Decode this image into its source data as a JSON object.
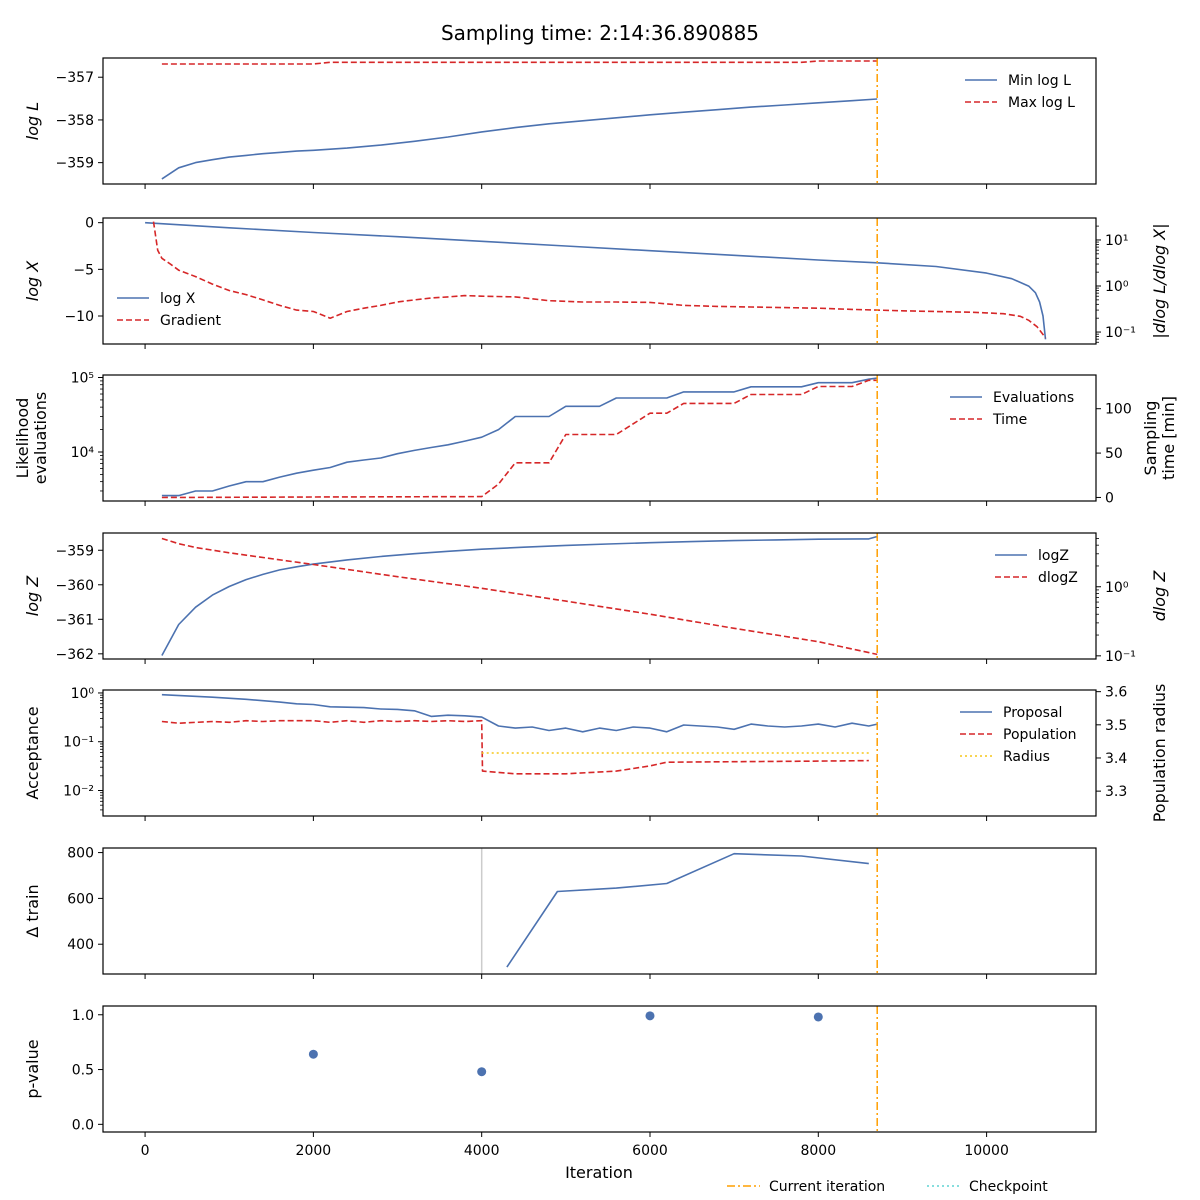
{
  "figure": {
    "title": "Sampling time: 2:14:36.890885",
    "xlabel": "Iteration",
    "legend": [
      "Current iteration",
      "Checkpoint"
    ]
  },
  "colors": {
    "blue": "#4c72b0",
    "red": "#d62728",
    "orange": "#ff9f00",
    "yellow": "#f5c518",
    "cyan": "#5fd3d3",
    "grey": "#cccccc"
  },
  "chart_data": [
    {
      "type": "line",
      "ylabel": "log L",
      "xlim": [
        -500,
        11300
      ],
      "ylim": [
        -359.5,
        -356.55
      ],
      "yticks": [
        {
          "v": -357,
          "label": "−357"
        },
        {
          "v": -358,
          "label": "−358"
        },
        {
          "v": -359,
          "label": "−359"
        }
      ],
      "current_iteration": 8700,
      "series": [
        {
          "name": "Min log L",
          "style": "solid",
          "color": "blue",
          "x": [
            200,
            400,
            600,
            800,
            1000,
            1200,
            1400,
            1600,
            1800,
            2000,
            2400,
            2800,
            3200,
            3600,
            4000,
            4400,
            4800,
            5200,
            5600,
            6000,
            6400,
            6800,
            7200,
            7600,
            8000,
            8400,
            8700
          ],
          "y": [
            -359.38,
            -359.12,
            -359.0,
            -358.93,
            -358.87,
            -358.83,
            -358.79,
            -358.76,
            -358.73,
            -358.71,
            -358.66,
            -358.59,
            -358.5,
            -358.4,
            -358.28,
            -358.18,
            -358.09,
            -358.02,
            -357.95,
            -357.88,
            -357.82,
            -357.76,
            -357.7,
            -357.65,
            -357.6,
            -357.55,
            -357.51
          ]
        },
        {
          "name": "Max log L",
          "style": "dashed",
          "color": "red",
          "x": [
            200,
            1000,
            2000,
            2200,
            4000,
            6000,
            7800,
            8000,
            8700
          ],
          "y": [
            -356.69,
            -356.69,
            -356.69,
            -356.65,
            -356.65,
            -356.65,
            -356.65,
            -356.62,
            -356.62
          ]
        }
      ],
      "legend": "upper right"
    },
    {
      "type": "line",
      "ylabel": "log X",
      "ylabel_right": "|dlog L/dlog X|",
      "xlim": [
        -500,
        11300
      ],
      "ylim": [
        -13.0,
        0.5
      ],
      "yticks": [
        {
          "v": 0,
          "label": "0"
        },
        {
          "v": -5,
          "label": "−5"
        },
        {
          "v": -10,
          "label": "−10"
        }
      ],
      "ylim_right": [
        0.055,
        30
      ],
      "yscale_right": "log",
      "yticks_right": [
        {
          "v": 10,
          "label": "10¹"
        },
        {
          "v": 1,
          "label": "10⁰"
        },
        {
          "v": 0.1,
          "label": "10⁻¹"
        }
      ],
      "current_iteration": 8700,
      "series": [
        {
          "name": "log X",
          "style": "solid",
          "color": "blue",
          "axis": "left",
          "x": [
            0,
            1000,
            2000,
            3000,
            4000,
            5000,
            6000,
            7000,
            8000,
            8700,
            9400,
            10000,
            10300,
            10500,
            10580,
            10630,
            10670,
            10700
          ],
          "y": [
            0,
            -0.55,
            -1.05,
            -1.5,
            -2.0,
            -2.5,
            -3.0,
            -3.5,
            -4.0,
            -4.3,
            -4.7,
            -5.4,
            -6.0,
            -6.8,
            -7.5,
            -8.5,
            -10.0,
            -12.5
          ]
        },
        {
          "name": "Gradient",
          "style": "dashed",
          "color": "red",
          "axis": "right",
          "x": [
            100,
            150,
            200,
            300,
            400,
            600,
            800,
            1000,
            1200,
            1400,
            1600,
            1800,
            2000,
            2200,
            2400,
            2600,
            2800,
            3000,
            3200,
            3400,
            3600,
            3800,
            4000,
            4400,
            4800,
            5200,
            5600,
            6000,
            6400,
            6800,
            7200,
            7600,
            8000,
            8400,
            8700,
            9000,
            9400,
            9800,
            10000,
            10200,
            10400,
            10500,
            10600,
            10700
          ],
          "y": [
            25,
            6,
            4,
            3,
            2.2,
            1.6,
            1.1,
            0.8,
            0.65,
            0.5,
            0.38,
            0.3,
            0.28,
            0.2,
            0.28,
            0.33,
            0.38,
            0.45,
            0.5,
            0.55,
            0.58,
            0.62,
            0.6,
            0.58,
            0.48,
            0.45,
            0.45,
            0.44,
            0.38,
            0.36,
            0.35,
            0.34,
            0.33,
            0.31,
            0.3,
            0.29,
            0.28,
            0.27,
            0.26,
            0.25,
            0.22,
            0.18,
            0.13,
            0.075
          ]
        }
      ],
      "legend": "center left"
    },
    {
      "type": "line",
      "ylabel": "Likelihood evaluations",
      "ylabel_right": "Sampling time [min]",
      "xlim": [
        -500,
        11300
      ],
      "yscale": "log",
      "ylim": [
        2200,
        108000
      ],
      "yticks": [
        {
          "v": 10000,
          "label": "10⁴"
        },
        {
          "v": 100000,
          "label": "10⁵"
        }
      ],
      "ylim_right": [
        -4,
        138
      ],
      "yticks_right": [
        {
          "v": 0,
          "label": "0"
        },
        {
          "v": 50,
          "label": "50"
        },
        {
          "v": 100,
          "label": "100"
        }
      ],
      "current_iteration": 8700,
      "series": [
        {
          "name": "Evaluations",
          "style": "solid",
          "color": "blue",
          "axis": "left",
          "x": [
            200,
            400,
            600,
            800,
            1000,
            1200,
            1400,
            1600,
            1800,
            2000,
            2200,
            2400,
            2600,
            2800,
            3000,
            3200,
            3400,
            3600,
            3800,
            4000,
            4200,
            4400,
            4600,
            4800,
            5000,
            5200,
            5400,
            5600,
            6000,
            6200,
            6400,
            6800,
            7000,
            7200,
            7600,
            7800,
            8000,
            8400,
            8600,
            8700
          ],
          "y": [
            2600,
            2600,
            3000,
            3000,
            3500,
            4000,
            4000,
            4600,
            5200,
            5700,
            6200,
            7300,
            7800,
            8300,
            9500,
            10500,
            11500,
            12500,
            14000,
            15800,
            20000,
            30000,
            30000,
            30000,
            41000,
            41000,
            41000,
            53000,
            53000,
            53000,
            64000,
            64000,
            64000,
            75000,
            75000,
            75000,
            85000,
            85000,
            95000,
            98000
          ]
        },
        {
          "name": "Time",
          "style": "dashed",
          "color": "red",
          "axis": "right",
          "x": [
            200,
            2000,
            4000,
            4200,
            4400,
            4800,
            5000,
            5200,
            5600,
            6000,
            6200,
            6400,
            6800,
            7000,
            7200,
            7600,
            7800,
            8000,
            8400,
            8600,
            8700
          ],
          "y": [
            0,
            0.5,
            1,
            15,
            39,
            39,
            71,
            71,
            71,
            95,
            95,
            106,
            106,
            106,
            116,
            116,
            116,
            125,
            125,
            132,
            132
          ]
        }
      ],
      "legend": "upper right"
    },
    {
      "type": "line",
      "ylabel": "log Z",
      "ylabel_right": "dlog Z",
      "xlim": [
        -500,
        11300
      ],
      "ylim": [
        -362.15,
        -358.5
      ],
      "yticks": [
        {
          "v": -359,
          "label": "−359"
        },
        {
          "v": -360,
          "label": "−360"
        },
        {
          "v": -361,
          "label": "−361"
        },
        {
          "v": -362,
          "label": "−362"
        }
      ],
      "yscale_right": "log",
      "ylim_right": [
        0.09,
        6
      ],
      "yticks_right": [
        {
          "v": 1,
          "label": "10⁰"
        },
        {
          "v": 0.1,
          "label": "10⁻¹"
        }
      ],
      "current_iteration": 8700,
      "series": [
        {
          "name": "logZ",
          "style": "solid",
          "color": "blue",
          "axis": "left",
          "x": [
            200,
            400,
            600,
            800,
            1000,
            1200,
            1400,
            1600,
            1800,
            2000,
            2400,
            2800,
            3200,
            3600,
            4000,
            4500,
            5000,
            5500,
            6000,
            6500,
            7000,
            7500,
            8000,
            8500,
            8600,
            8700
          ],
          "y": [
            -362.05,
            -361.15,
            -360.65,
            -360.3,
            -360.05,
            -359.85,
            -359.7,
            -359.57,
            -359.48,
            -359.4,
            -359.28,
            -359.18,
            -359.1,
            -359.03,
            -358.97,
            -358.91,
            -358.86,
            -358.82,
            -358.78,
            -358.75,
            -358.72,
            -358.7,
            -358.68,
            -358.67,
            -358.67,
            -358.6
          ]
        },
        {
          "name": "dlogZ",
          "style": "dashed",
          "color": "red",
          "axis": "right",
          "x": [
            200,
            400,
            600,
            1000,
            2000,
            3000,
            4000,
            5000,
            6000,
            7000,
            8000,
            8700
          ],
          "y": [
            5.0,
            4.2,
            3.7,
            3.1,
            2.1,
            1.4,
            0.95,
            0.62,
            0.4,
            0.25,
            0.16,
            0.105
          ]
        }
      ],
      "legend": "upper right"
    },
    {
      "type": "line",
      "ylabel": "Acceptance",
      "ylabel_right": "Population radius",
      "xlim": [
        -500,
        11300
      ],
      "yscale": "log",
      "ylim": [
        0.003,
        1.15
      ],
      "yticks": [
        {
          "v": 1,
          "label": "10⁰"
        },
        {
          "v": 0.1,
          "label": "10⁻¹"
        },
        {
          "v": 0.01,
          "label": "10⁻²"
        }
      ],
      "ylim_right": [
        3.225,
        3.605
      ],
      "yticks_right": [
        {
          "v": 3.6,
          "label": "3.6"
        },
        {
          "v": 3.5,
          "label": "3.5"
        },
        {
          "v": 3.4,
          "label": "3.4"
        },
        {
          "v": 3.3,
          "label": "3.3"
        }
      ],
      "current_iteration": 8700,
      "series": [
        {
          "name": "Proposal",
          "style": "solid",
          "color": "blue",
          "axis": "left",
          "x": [
            200,
            800,
            1200,
            1600,
            1800,
            2000,
            2200,
            2600,
            2800,
            3000,
            3200,
            3400,
            3600,
            3800,
            4000,
            4200,
            4400,
            4600,
            4800,
            5000,
            5200,
            5400,
            5600,
            5800,
            6000,
            6200,
            6400,
            6600,
            6800,
            7000,
            7200,
            7400,
            7600,
            7800,
            8000,
            8200,
            8400,
            8600,
            8700
          ],
          "y": [
            0.92,
            0.82,
            0.74,
            0.65,
            0.6,
            0.58,
            0.52,
            0.5,
            0.47,
            0.46,
            0.43,
            0.33,
            0.35,
            0.34,
            0.32,
            0.21,
            0.19,
            0.2,
            0.17,
            0.19,
            0.16,
            0.19,
            0.17,
            0.2,
            0.19,
            0.16,
            0.22,
            0.21,
            0.2,
            0.18,
            0.23,
            0.21,
            0.2,
            0.21,
            0.23,
            0.2,
            0.24,
            0.21,
            0.23
          ]
        },
        {
          "name": "Population",
          "style": "dashed",
          "color": "red",
          "axis": "left",
          "x": [
            200,
            400,
            800,
            1000,
            1200,
            1400,
            1600,
            1800,
            2000,
            2200,
            2400,
            2600,
            2800,
            3000,
            3200,
            3400,
            3600,
            3800,
            4000,
            4010,
            4400,
            5000,
            5600,
            6000,
            6200,
            7000,
            8000,
            8600
          ],
          "y": [
            0.26,
            0.24,
            0.26,
            0.25,
            0.27,
            0.26,
            0.27,
            0.27,
            0.27,
            0.25,
            0.27,
            0.25,
            0.27,
            0.26,
            0.27,
            0.26,
            0.27,
            0.26,
            0.27,
            0.025,
            0.022,
            0.022,
            0.025,
            0.032,
            0.038,
            0.039,
            0.04,
            0.041
          ]
        },
        {
          "name": "Radius",
          "style": "dotted",
          "color": "yellow",
          "axis": "right",
          "x": [
            4000,
            8600
          ],
          "y": [
            3.415,
            3.415
          ]
        }
      ],
      "legend": "upper right"
    },
    {
      "type": "line",
      "ylabel": "Δ train",
      "xlim": [
        -500,
        11300
      ],
      "ylim": [
        270,
        820
      ],
      "yticks": [
        {
          "v": 800,
          "label": "800"
        },
        {
          "v": 600,
          "label": "600"
        },
        {
          "v": 400,
          "label": "400"
        }
      ],
      "current_iteration": 8700,
      "vline_grey": 4000,
      "series": [
        {
          "name": "",
          "style": "solid",
          "color": "blue",
          "x": [
            4300,
            4900,
            5600,
            6200,
            7000,
            7800,
            8600
          ],
          "y": [
            300,
            630,
            645,
            665,
            795,
            785,
            752
          ]
        }
      ]
    },
    {
      "type": "scatter",
      "ylabel": "p-value",
      "xlim": [
        -500,
        11300
      ],
      "ylim": [
        -0.07,
        1.08
      ],
      "yticks": [
        {
          "v": 1.0,
          "label": "1.0"
        },
        {
          "v": 0.5,
          "label": "0.5"
        },
        {
          "v": 0.0,
          "label": "0.0"
        }
      ],
      "current_iteration": 8700,
      "xticks": [
        {
          "v": 0,
          "label": "0"
        },
        {
          "v": 2000,
          "label": "2000"
        },
        {
          "v": 4000,
          "label": "4000"
        },
        {
          "v": 6000,
          "label": "6000"
        },
        {
          "v": 8000,
          "label": "8000"
        },
        {
          "v": 10000,
          "label": "10000"
        }
      ],
      "series": [
        {
          "name": "",
          "color": "blue",
          "x": [
            2000,
            4000,
            6000,
            8000
          ],
          "y": [
            0.64,
            0.48,
            0.99,
            0.98
          ]
        }
      ]
    }
  ]
}
